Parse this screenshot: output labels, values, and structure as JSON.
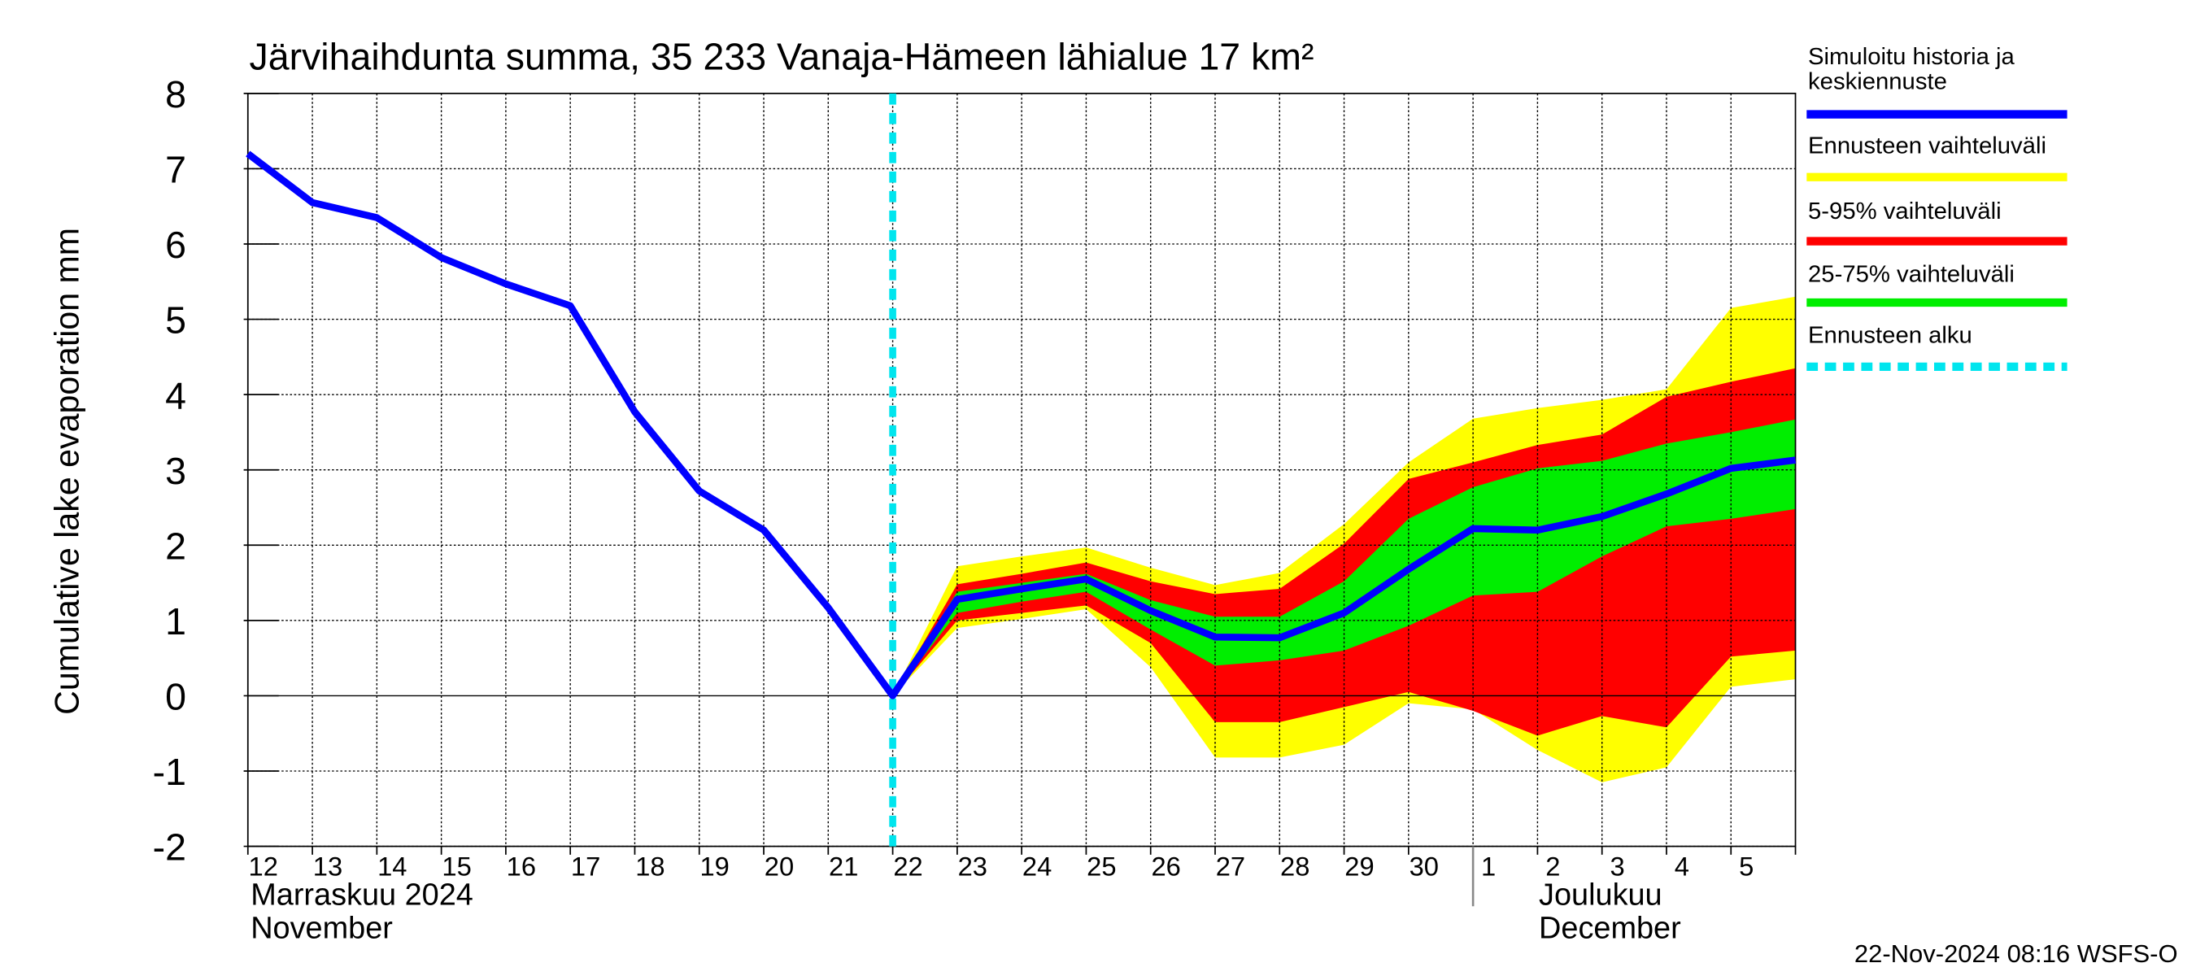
{
  "chart_data": {
    "type": "band-line",
    "title": "Järvihaihdunta summa, 35 233 Vanaja-Hämeen lähialue 17 km²",
    "ylabel": "Cumulative lake evaporation   mm",
    "categories": [
      "12",
      "13",
      "14",
      "15",
      "16",
      "17",
      "18",
      "19",
      "20",
      "21",
      "22",
      "23",
      "24",
      "25",
      "26",
      "27",
      "28",
      "29",
      "30",
      "1",
      "2",
      "3",
      "4",
      "5",
      null
    ],
    "month_labels": [
      {
        "index": 0,
        "lines": [
          "Marraskuu 2024",
          "November"
        ]
      },
      {
        "index": 19,
        "lines": [
          "Joulukuu",
          "December"
        ]
      }
    ],
    "ylim": [
      -2,
      8
    ],
    "yticks": [
      -2,
      -1,
      0,
      1,
      2,
      3,
      4,
      5,
      6,
      7,
      8
    ],
    "grid": true,
    "bands": [
      {
        "name": "Ennusteen vaihteluväli",
        "color": "#ffff00",
        "low": [
          null,
          null,
          null,
          null,
          null,
          null,
          null,
          null,
          null,
          null,
          0,
          0.9,
          1.02,
          1.15,
          0.38,
          -0.82,
          -0.82,
          -0.65,
          -0.1,
          -0.18,
          -0.72,
          -1.15,
          -0.95,
          0.12,
          0.22
        ],
        "high": [
          null,
          null,
          null,
          null,
          null,
          null,
          null,
          null,
          null,
          null,
          0,
          1.72,
          1.85,
          1.97,
          1.7,
          1.47,
          1.63,
          2.28,
          3.1,
          3.68,
          3.82,
          3.93,
          4.07,
          5.15,
          5.3
        ]
      },
      {
        "name": "5-95% vaihteluväli",
        "color": "#ff0000",
        "low": [
          null,
          null,
          null,
          null,
          null,
          null,
          null,
          null,
          null,
          null,
          0,
          1.0,
          1.1,
          1.2,
          0.7,
          -0.35,
          -0.35,
          -0.15,
          0.05,
          -0.2,
          -0.53,
          -0.27,
          -0.42,
          0.52,
          0.6
        ],
        "high": [
          null,
          null,
          null,
          null,
          null,
          null,
          null,
          null,
          null,
          null,
          0,
          1.48,
          1.62,
          1.77,
          1.52,
          1.35,
          1.42,
          2.02,
          2.88,
          3.1,
          3.33,
          3.47,
          3.97,
          4.17,
          4.35
        ]
      },
      {
        "name": "25-75% vaihteluväli",
        "color": "#00ee00",
        "low": [
          null,
          null,
          null,
          null,
          null,
          null,
          null,
          null,
          null,
          null,
          0,
          1.1,
          1.25,
          1.38,
          0.88,
          0.4,
          0.47,
          0.6,
          0.93,
          1.33,
          1.38,
          1.85,
          2.25,
          2.35,
          2.48
        ],
        "high": [
          null,
          null,
          null,
          null,
          null,
          null,
          null,
          null,
          null,
          null,
          0,
          1.38,
          1.5,
          1.62,
          1.27,
          1.05,
          1.05,
          1.52,
          2.35,
          2.77,
          3.02,
          3.12,
          3.35,
          3.5,
          3.67
        ]
      }
    ],
    "series": [
      {
        "name": "Simuloitu historia ja\nkeskiennuste",
        "color": "#0000ff",
        "values": [
          7.2,
          6.55,
          6.35,
          5.82,
          5.47,
          5.18,
          3.77,
          2.72,
          2.2,
          1.17,
          0,
          1.28,
          1.42,
          1.55,
          1.13,
          0.78,
          0.77,
          1.1,
          1.68,
          2.22,
          2.2,
          2.38,
          2.68,
          3.02,
          3.13
        ]
      }
    ],
    "forecast_start": {
      "name": "Ennusteen alku",
      "color": "#00e5ee",
      "index": 10
    },
    "footer": "22-Nov-2024 08:16 WSFS-O"
  }
}
